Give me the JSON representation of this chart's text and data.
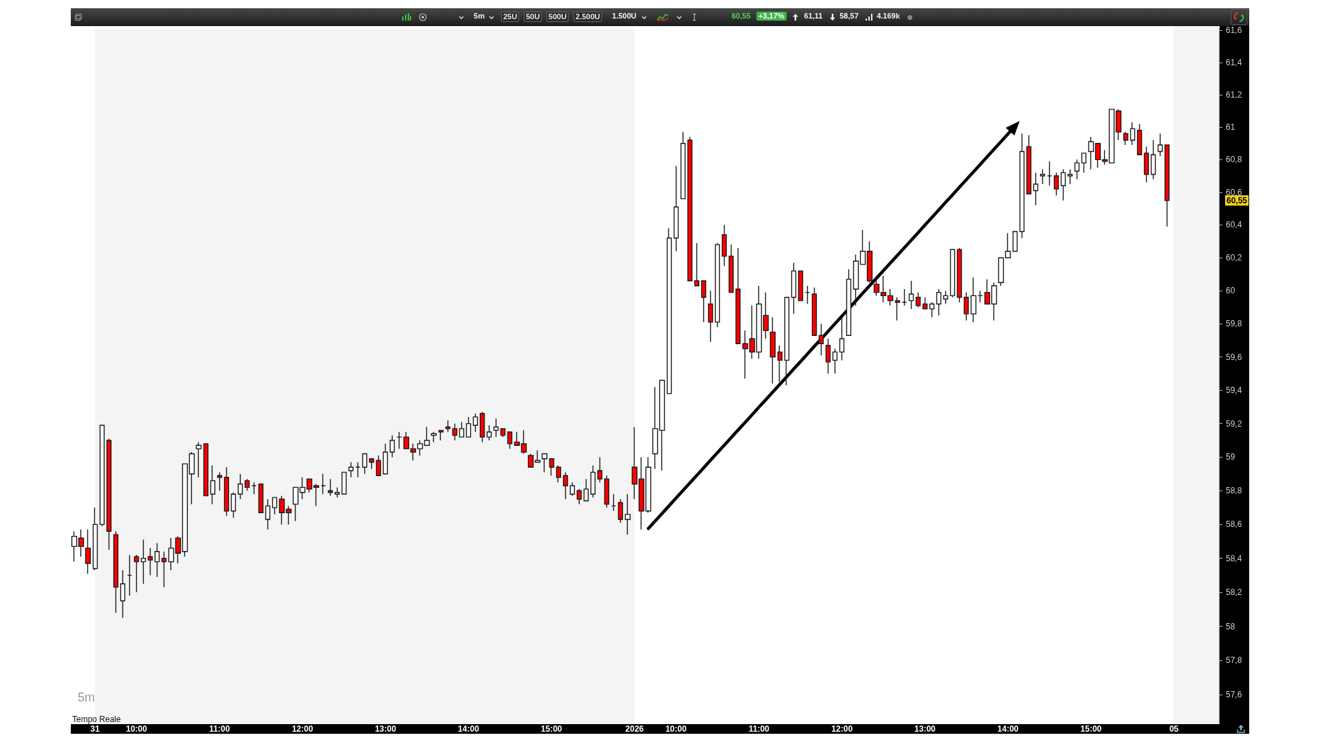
{
  "chart_data": {
    "type": "candlestick",
    "log": "y",
    "grid": false,
    "marker": "none",
    "categories": [
      null,
      null,
      null,
      "31",
      null,
      null,
      null,
      null,
      null,
      "10:00",
      null,
      null,
      null,
      null,
      null,
      null,
      null,
      null,
      null,
      null,
      null,
      "11:00",
      null,
      null,
      null,
      null,
      null,
      null,
      null,
      null,
      null,
      null,
      null,
      "12:00",
      null,
      null,
      null,
      null,
      null,
      null,
      null,
      null,
      null,
      null,
      null,
      "13:00",
      null,
      null,
      null,
      null,
      null,
      null,
      null,
      null,
      null,
      null,
      null,
      "14:00",
      null,
      null,
      null,
      null,
      null,
      null,
      null,
      null,
      null,
      null,
      null,
      "15:00",
      null,
      null,
      null,
      null,
      null,
      null,
      null,
      null,
      null,
      null,
      null,
      "2026",
      null,
      null,
      null,
      null,
      null,
      "10:00",
      null,
      null,
      null,
      null,
      null,
      null,
      null,
      null,
      null,
      null,
      null,
      "11:00",
      null,
      null,
      null,
      null,
      null,
      null,
      null,
      null,
      null,
      null,
      null,
      "12:00",
      null,
      null,
      null,
      null,
      null,
      null,
      null,
      null,
      null,
      null,
      null,
      "13:00",
      null,
      null,
      null,
      null,
      null,
      null,
      null,
      null,
      null,
      null,
      null,
      "14:00",
      null,
      null,
      null,
      null,
      null,
      null,
      null,
      null,
      null,
      null,
      null,
      "15:00",
      null,
      null,
      null,
      null,
      null,
      null,
      null,
      null,
      null,
      null,
      null,
      "05",
      null,
      null,
      null,
      null,
      null,
      null
    ],
    "ylim": [
      57.43,
      61.61
    ],
    "yticks": [
      {
        "value": 57.6,
        "label": "57,6"
      },
      {
        "value": 57.8,
        "label": "57,8"
      },
      58,
      {
        "value": 58.2,
        "label": "58,2"
      },
      {
        "value": 58.4,
        "label": "58,4"
      },
      {
        "value": 58.6,
        "label": "58,6"
      },
      {
        "value": 58.8,
        "label": "58,8"
      },
      59,
      {
        "value": 59.2,
        "label": "59,2"
      },
      {
        "value": 59.4,
        "label": "59,4"
      },
      {
        "value": 59.6,
        "label": "59,6"
      },
      {
        "value": 59.8,
        "label": "59,8"
      },
      60,
      {
        "value": 60.2,
        "label": "60,2"
      },
      {
        "value": 60.4,
        "label": "60,4"
      },
      {
        "value": 60.6,
        "label": "60,6"
      },
      {
        "value": 60.8,
        "label": "60,8"
      },
      61,
      {
        "value": 61.2,
        "label": "61,2"
      },
      {
        "value": 61.4,
        "label": "61,4"
      },
      {
        "value": 61.6,
        "label": "61,6"
      }
    ],
    "bands": [
      {
        "axis": "x",
        "from": "31",
        "to": "2026",
        "color": "#f4f4f4"
      }
    ],
    "series": [
      {
        "ohlc": [
          [
            58.47,
            58.56,
            58.38,
            58.53
          ],
          [
            58.52,
            58.57,
            58.41,
            58.47
          ],
          [
            58.46,
            58.57,
            58.31,
            58.37
          ],
          [
            58.34,
            58.7,
            58.33,
            58.6
          ],
          [
            58.6,
            59.19,
            58.59,
            59.19
          ],
          [
            59.1,
            59.11,
            58.45,
            58.56
          ],
          [
            58.54,
            58.56,
            58.08,
            58.23
          ],
          [
            58.15,
            58.33,
            58.05,
            58.25
          ],
          [
            58.3,
            58.42,
            58.18,
            58.3
          ],
          [
            58.41,
            58.42,
            58.2,
            58.38
          ],
          [
            58.38,
            58.51,
            58.25,
            58.4
          ],
          [
            58.41,
            58.46,
            58.3,
            58.39
          ],
          [
            58.38,
            58.49,
            58.29,
            58.44
          ],
          [
            58.4,
            58.44,
            58.23,
            58.38
          ],
          [
            58.38,
            58.52,
            58.33,
            58.46
          ],
          [
            58.52,
            58.53,
            58.37,
            58.43
          ],
          [
            58.44,
            58.96,
            58.41,
            58.96
          ],
          [
            58.9,
            59.03,
            58.72,
            59.02
          ],
          [
            59.05,
            59.09,
            58.88,
            59.07
          ],
          [
            59.08,
            59.08,
            58.77,
            58.77
          ],
          [
            58.78,
            58.95,
            58.72,
            58.86
          ],
          [
            58.89,
            58.91,
            58.8,
            58.88
          ],
          [
            58.88,
            58.94,
            58.65,
            58.68
          ],
          [
            58.68,
            58.79,
            58.64,
            58.78
          ],
          [
            58.78,
            58.9,
            58.75,
            58.84
          ],
          [
            58.86,
            58.87,
            58.8,
            58.82
          ],
          [
            58.83,
            58.85,
            58.78,
            58.83
          ],
          [
            58.84,
            58.84,
            58.67,
            58.67
          ],
          [
            58.63,
            58.75,
            58.57,
            58.71
          ],
          [
            58.7,
            58.76,
            58.66,
            58.76
          ],
          [
            58.75,
            58.77,
            58.6,
            58.67
          ],
          [
            58.69,
            58.71,
            58.6,
            58.67
          ],
          [
            58.72,
            58.82,
            58.62,
            58.82
          ],
          [
            58.79,
            58.88,
            58.75,
            58.82
          ],
          [
            58.87,
            58.87,
            58.79,
            58.81
          ],
          [
            58.83,
            58.84,
            58.71,
            58.82
          ],
          [
            58.83,
            58.9,
            58.78,
            58.83
          ],
          [
            58.8,
            58.87,
            58.77,
            58.79
          ],
          [
            58.78,
            58.82,
            58.76,
            58.79
          ],
          [
            58.78,
            58.91,
            58.78,
            58.91
          ],
          [
            58.92,
            58.97,
            58.88,
            58.94
          ],
          [
            58.94,
            58.97,
            58.88,
            58.94
          ],
          [
            58.94,
            59.02,
            58.9,
            59.02
          ],
          [
            58.99,
            58.99,
            58.93,
            58.97
          ],
          [
            58.98,
            59.01,
            58.89,
            58.89
          ],
          [
            58.9,
            59.08,
            58.9,
            59.03
          ],
          [
            59.03,
            59.13,
            59.0,
            59.1
          ],
          [
            59.12,
            59.15,
            59.05,
            59.12
          ],
          [
            59.12,
            59.15,
            59.05,
            59.05
          ],
          [
            59.05,
            59.08,
            58.98,
            59.03
          ],
          [
            59.05,
            59.1,
            59.01,
            59.08
          ],
          [
            59.07,
            59.18,
            59.07,
            59.1
          ],
          [
            59.13,
            59.15,
            59.09,
            59.14
          ],
          [
            59.16,
            59.16,
            59.1,
            59.15
          ],
          [
            59.18,
            59.22,
            59.15,
            59.17
          ],
          [
            59.17,
            59.2,
            59.1,
            59.13
          ],
          [
            59.12,
            59.21,
            59.12,
            59.17
          ],
          [
            59.12,
            59.24,
            59.12,
            59.2
          ],
          [
            59.19,
            59.26,
            59.15,
            59.24
          ],
          [
            59.26,
            59.27,
            59.09,
            59.12
          ],
          [
            59.12,
            59.19,
            59.1,
            59.15
          ],
          [
            59.16,
            59.23,
            59.12,
            59.18
          ],
          [
            59.17,
            59.17,
            59.12,
            59.13
          ],
          [
            59.15,
            59.15,
            59.05,
            59.08
          ],
          [
            59.09,
            59.15,
            59.07,
            59.07
          ],
          [
            59.08,
            59.16,
            59.02,
            59.03
          ],
          [
            59.01,
            59.02,
            58.94,
            58.94
          ],
          [
            58.97,
            59.04,
            58.97,
            58.98
          ],
          [
            58.99,
            59.02,
            58.91,
            59.02
          ],
          [
            58.99,
            58.99,
            58.89,
            58.94
          ],
          [
            58.94,
            58.95,
            58.85,
            58.88
          ],
          [
            58.89,
            58.91,
            58.75,
            58.83
          ],
          [
            58.78,
            58.85,
            58.77,
            58.83
          ],
          [
            58.8,
            58.81,
            58.72,
            58.75
          ],
          [
            58.74,
            58.87,
            58.74,
            58.81
          ],
          [
            58.78,
            58.95,
            58.76,
            58.91
          ],
          [
            58.92,
            59.0,
            58.85,
            58.87
          ],
          [
            58.87,
            58.89,
            58.7,
            58.72
          ],
          [
            58.71,
            58.78,
            58.68,
            58.71
          ],
          [
            58.73,
            58.75,
            58.61,
            58.63
          ],
          [
            58.63,
            58.78,
            58.54,
            58.66
          ],
          [
            58.94,
            59.18,
            58.75,
            58.84
          ],
          [
            58.87,
            59.0,
            58.57,
            58.68
          ],
          [
            58.68,
            59.0,
            58.67,
            58.94
          ],
          [
            59.02,
            59.42,
            58.93,
            59.17
          ],
          [
            59.16,
            59.46,
            58.92,
            59.46
          ],
          [
            59.38,
            60.38,
            59.38,
            60.32
          ],
          [
            60.32,
            60.76,
            60.24,
            60.51
          ],
          [
            60.56,
            60.97,
            60.56,
            60.9
          ],
          [
            60.92,
            60.94,
            60.06,
            60.06
          ],
          [
            60.06,
            60.29,
            60.03,
            60.03
          ],
          [
            60.06,
            60.06,
            59.81,
            59.96
          ],
          [
            59.92,
            60.0,
            59.69,
            59.81
          ],
          [
            59.81,
            60.29,
            59.78,
            60.28
          ],
          [
            60.34,
            60.4,
            60.15,
            60.21
          ],
          [
            60.21,
            60.28,
            59.99,
            59.99
          ],
          [
            60.01,
            60.26,
            59.68,
            59.68
          ],
          [
            59.68,
            59.76,
            59.47,
            59.65
          ],
          [
            59.71,
            59.91,
            59.59,
            59.63
          ],
          [
            59.63,
            60.03,
            59.59,
            59.92
          ],
          [
            59.85,
            59.99,
            59.71,
            59.76
          ],
          [
            59.75,
            59.84,
            59.44,
            59.6
          ],
          [
            59.63,
            59.67,
            59.45,
            59.58
          ],
          [
            59.58,
            59.96,
            59.43,
            59.96
          ],
          [
            59.96,
            60.17,
            59.86,
            60.12
          ],
          [
            60.12,
            60.12,
            59.94,
            59.94
          ],
          [
            59.99,
            60.03,
            59.92,
            59.99
          ],
          [
            59.98,
            60.02,
            59.73,
            59.73
          ],
          [
            59.73,
            59.8,
            59.61,
            59.68
          ],
          [
            59.67,
            59.71,
            59.5,
            59.57
          ],
          [
            59.58,
            59.65,
            59.5,
            59.63
          ],
          [
            59.63,
            59.86,
            59.58,
            59.71
          ],
          [
            59.73,
            60.13,
            59.73,
            60.07
          ],
          [
            60.01,
            60.22,
            59.91,
            60.18
          ],
          [
            60.16,
            60.37,
            60.16,
            60.24
          ],
          [
            60.24,
            60.3,
            60.05,
            60.06
          ],
          [
            60.04,
            60.09,
            59.97,
            59.99
          ],
          [
            59.99,
            60.09,
            59.93,
            59.97
          ],
          [
            59.97,
            60.01,
            59.91,
            59.94
          ],
          [
            59.94,
            59.96,
            59.82,
            59.93
          ],
          [
            59.93,
            60.01,
            59.91,
            59.93
          ],
          [
            59.94,
            60.06,
            59.89,
            59.98
          ],
          [
            59.96,
            59.99,
            59.9,
            59.91
          ],
          [
            59.92,
            59.96,
            59.89,
            59.89
          ],
          [
            59.89,
            59.93,
            59.84,
            59.92
          ],
          [
            59.92,
            60.01,
            59.85,
            59.99
          ],
          [
            59.95,
            60.0,
            59.92,
            59.97
          ],
          [
            59.97,
            60.25,
            59.96,
            60.25
          ],
          [
            60.25,
            60.26,
            59.93,
            59.96
          ],
          [
            59.96,
            59.99,
            59.82,
            59.86
          ],
          [
            59.86,
            60.08,
            59.81,
            59.97
          ],
          [
            59.97,
            60.0,
            59.93,
            59.97
          ],
          [
            59.99,
            60.07,
            59.92,
            59.92
          ],
          [
            59.92,
            60.05,
            59.82,
            60.03
          ],
          [
            60.05,
            60.2,
            60.03,
            60.2
          ],
          [
            60.2,
            60.35,
            60.2,
            60.24
          ],
          [
            60.24,
            60.36,
            60.24,
            60.36
          ],
          [
            60.36,
            60.96,
            60.32,
            60.85
          ],
          [
            60.88,
            60.95,
            60.59,
            60.59
          ],
          [
            60.61,
            60.72,
            60.52,
            60.65
          ],
          [
            60.7,
            60.74,
            60.65,
            60.71
          ],
          [
            60.7,
            60.79,
            60.64,
            60.7
          ],
          [
            60.7,
            60.72,
            60.58,
            60.62
          ],
          [
            60.64,
            60.74,
            60.55,
            60.72
          ],
          [
            60.7,
            60.74,
            60.65,
            60.71
          ],
          [
            60.73,
            60.8,
            60.68,
            60.78
          ],
          [
            60.78,
            60.84,
            60.72,
            60.84
          ],
          [
            60.85,
            60.94,
            60.74,
            60.91
          ],
          [
            60.9,
            60.9,
            60.75,
            60.8
          ],
          [
            60.8,
            60.86,
            60.77,
            60.79
          ],
          [
            60.78,
            61.11,
            60.78,
            61.11
          ],
          [
            61.1,
            61.11,
            60.92,
            60.97
          ],
          [
            60.96,
            60.97,
            60.89,
            60.92
          ],
          [
            60.92,
            61.03,
            60.89,
            60.99
          ],
          [
            60.98,
            61.02,
            60.83,
            60.83
          ],
          [
            60.84,
            60.88,
            60.66,
            60.71
          ],
          [
            60.71,
            60.92,
            60.68,
            60.83
          ],
          [
            60.85,
            60.96,
            60.82,
            60.89
          ],
          [
            60.89,
            60.89,
            60.39,
            60.55
          ],
          null,
          null,
          null,
          null,
          null,
          null,
          null
        ],
        "colors": [
          "#ffffff",
          "#ff0000",
          "#ff0000",
          "#ffffff",
          "#ffffff",
          "#ff0000",
          "#ff0000",
          "#ffffff",
          "#1a1a1a",
          "#ff0000",
          "#ffffff",
          "#ff0000",
          "#ffffff",
          "#ff0000",
          "#ffffff",
          "#ff0000",
          "#ffffff",
          "#ffffff",
          "#ffffff",
          "#ff0000",
          "#ffffff",
          "#ff0000",
          "#ff0000",
          "#ffffff",
          "#ffffff",
          "#ff0000",
          "#1a1a1a",
          "#ff0000",
          "#ffffff",
          "#ffffff",
          "#ff0000",
          "#ff0000",
          "#ffffff",
          "#ffffff",
          "#ff0000",
          "#ff0000",
          "#1a1a1a",
          "#ff0000",
          "#ffffff",
          "#ffffff",
          "#ffffff",
          "#1a1a1a",
          "#ffffff",
          "#ff0000",
          "#ff0000",
          "#ffffff",
          "#ffffff",
          "#1a1a1a",
          "#ff0000",
          "#ff0000",
          "#ffffff",
          "#ffffff",
          "#ffffff",
          "#ff0000",
          "#ff0000",
          "#ff0000",
          "#ffffff",
          "#ffffff",
          "#ffffff",
          "#ff0000",
          "#ffffff",
          "#ffffff",
          "#ff0000",
          "#ff0000",
          "#ff0000",
          "#ff0000",
          "#ff0000",
          "#ffffff",
          "#ffffff",
          "#ff0000",
          "#ff0000",
          "#ff0000",
          "#ffffff",
          "#ff0000",
          "#ffffff",
          "#ffffff",
          "#ff0000",
          "#ff0000",
          "#1a1a1a",
          "#ff0000",
          "#ffffff",
          "#ff0000",
          "#ff0000",
          "#ffffff",
          "#ffffff",
          "#ffffff",
          "#ffffff",
          "#ffffff",
          "#ffffff",
          "#ff0000",
          "#ff0000",
          "#ff0000",
          "#ff0000",
          "#ffffff",
          "#ff0000",
          "#ff0000",
          "#ff0000",
          "#ff0000",
          "#ff0000",
          "#ffffff",
          "#ff0000",
          "#ff0000",
          "#ff0000",
          "#ffffff",
          "#ffffff",
          "#ff0000",
          "#1a1a1a",
          "#ff0000",
          "#ff0000",
          "#ff0000",
          "#ffffff",
          "#ffffff",
          "#ffffff",
          "#ffffff",
          "#ffffff",
          "#ff0000",
          "#ff0000",
          "#ff0000",
          "#ff0000",
          "#ff0000",
          "#1a1a1a",
          "#ffffff",
          "#ff0000",
          "#ff0000",
          "#ffffff",
          "#ffffff",
          "#ffffff",
          "#ffffff",
          "#ff0000",
          "#ff0000",
          "#ffffff",
          "#1a1a1a",
          "#ff0000",
          "#ffffff",
          "#ffffff",
          "#ffffff",
          "#ffffff",
          "#ffffff",
          "#ff0000",
          "#ffffff",
          "#ffffff",
          "#1a1a1a",
          "#ff0000",
          "#ffffff",
          "#ffffff",
          "#ffffff",
          "#ffffff",
          "#ffffff",
          "#ff0000",
          "#ff0000",
          "#ffffff",
          "#ff0000",
          "#ff0000",
          "#ffffff",
          "#ff0000",
          "#ff0000",
          "#ffffff",
          "#ffffff",
          "#ff0000",
          null,
          null,
          null,
          null,
          null,
          null,
          null
        ]
      },
      {
        "type": "line",
        "color": "#000000",
        "values": [
          null,
          null,
          null,
          null,
          null,
          null,
          null,
          null,
          null,
          null,
          null,
          null,
          null,
          null,
          null,
          null,
          null,
          null,
          null,
          null,
          null,
          null,
          null,
          null,
          null,
          null,
          null,
          null,
          null,
          null,
          null,
          null,
          null,
          null,
          null,
          null,
          null,
          null,
          null,
          null,
          null,
          null,
          null,
          null,
          null,
          null,
          null,
          null,
          null,
          null,
          null,
          null,
          null,
          null,
          null,
          null,
          null,
          null,
          null,
          null,
          null,
          null,
          null,
          null,
          null,
          null,
          null,
          null,
          null,
          null,
          null,
          null,
          null,
          null,
          null,
          null,
          null,
          null,
          null,
          null,
          null,
          null,
          null,
          58.576,
          58.621,
          58.666,
          58.711,
          58.756,
          58.801,
          58.846,
          58.891,
          58.936,
          58.982,
          59.027,
          59.072,
          59.117,
          59.163,
          59.208,
          59.253,
          59.299,
          59.344,
          59.39,
          59.435,
          59.481,
          59.527,
          59.572,
          59.618,
          59.664,
          59.709,
          59.755,
          59.801,
          59.847,
          59.893,
          59.939,
          59.985,
          60.031,
          60.077,
          60.123,
          60.169,
          60.215,
          60.261,
          60.307,
          60.353,
          60.4,
          60.446,
          60.492,
          60.539,
          60.585,
          60.632,
          60.678,
          60.725,
          60.771,
          60.818,
          60.865,
          60.911,
          60.958,
          61.005,
          null,
          null,
          null,
          null,
          null,
          null,
          null,
          null,
          null,
          null,
          null,
          null,
          null,
          null,
          null,
          null,
          null,
          null,
          null,
          null,
          null,
          null,
          null,
          null,
          null,
          null,
          null,
          null,
          null
        ]
      }
    ],
    "annotations": [
      "5m",
      "Tempo Reale",
      "5m",
      "25U",
      "50U",
      "500U",
      "2.500U",
      "1.500U",
      "60,55",
      "+3,17%",
      "61,11",
      "58,57",
      "4.169k",
      "60,55"
    ]
  }
}
